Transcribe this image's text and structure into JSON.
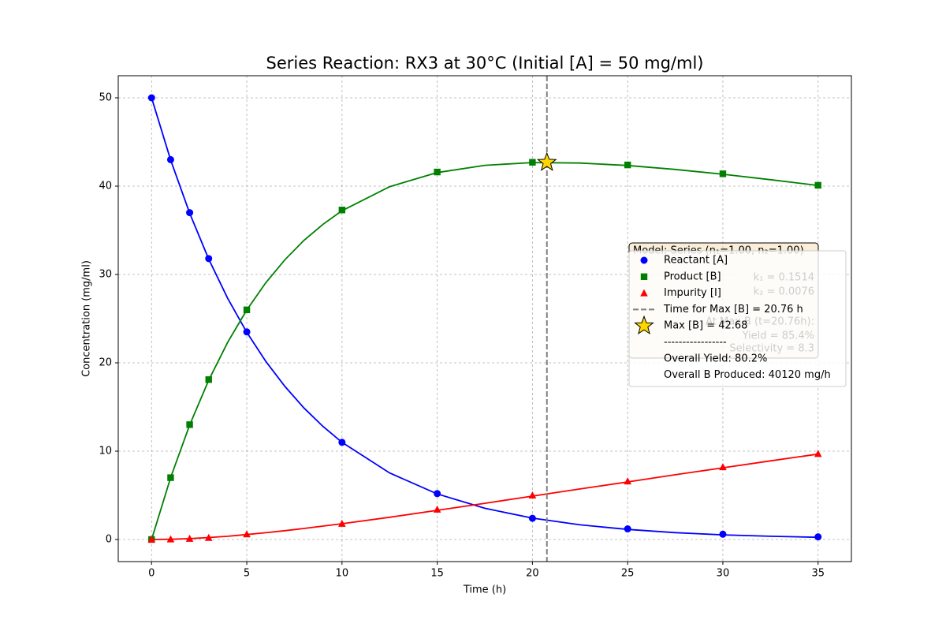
{
  "chart_data": {
    "type": "line",
    "title": "Series Reaction: RX3 at 30°C (Initial [A] = 50 mg/ml)",
    "xlabel": "Time (h)",
    "ylabel": "Concentration (mg/ml)",
    "xlim": [
      -1.75,
      36.75
    ],
    "ylim": [
      -2.5,
      52.5
    ],
    "xticks": [
      0,
      5,
      10,
      15,
      20,
      25,
      30,
      35
    ],
    "yticks": [
      0,
      10,
      20,
      30,
      40,
      50
    ],
    "grid": true,
    "x": [
      0,
      1,
      2,
      3,
      5,
      10,
      15,
      20,
      25,
      30,
      35
    ],
    "curve_x": [
      0,
      1,
      2,
      3,
      4,
      5,
      6,
      7,
      8,
      9,
      10,
      12.5,
      15,
      17.5,
      20,
      22.5,
      25,
      27.5,
      30,
      32.5,
      35
    ],
    "series": [
      {
        "name": "Reactant [A]",
        "color": "#0000ff",
        "marker": "circle",
        "values": [
          50,
          43,
          37,
          31.8,
          23.5,
          11,
          5.2,
          2.4,
          1.2,
          0.6,
          0.3
        ],
        "curve": [
          50,
          42.97,
          36.94,
          31.75,
          27.29,
          23.45,
          20.16,
          17.33,
          14.89,
          12.8,
          11.0,
          7.54,
          5.16,
          3.54,
          2.42,
          1.66,
          1.14,
          0.78,
          0.53,
          0.37,
          0.25
        ]
      },
      {
        "name": "Product [B]",
        "color": "#008000",
        "marker": "square",
        "values": [
          0,
          7,
          13,
          18.1,
          26,
          37.3,
          41.6,
          42.7,
          42.4,
          41.4,
          40.1
        ],
        "curve": [
          0,
          7.0,
          12.96,
          18.03,
          22.34,
          25.99,
          29.07,
          31.67,
          33.86,
          35.68,
          37.21,
          39.94,
          41.54,
          42.36,
          42.67,
          42.62,
          42.34,
          41.89,
          41.35,
          40.73,
          40.08
        ]
      },
      {
        "name": "Impurity [I]",
        "color": "#ff0000",
        "marker": "triangle",
        "values": [
          0,
          0.03,
          0.1,
          0.2,
          0.6,
          1.8,
          3.4,
          5.0,
          6.6,
          8.2,
          9.7
        ],
        "curve": [
          0,
          0.03,
          0.1,
          0.22,
          0.37,
          0.56,
          0.77,
          1.0,
          1.25,
          1.52,
          1.79,
          2.52,
          3.3,
          4.1,
          4.91,
          5.72,
          6.52,
          7.33,
          8.12,
          8.9,
          9.67
        ]
      }
    ],
    "vline": {
      "name": "Time for Max [B] = 20.76 h",
      "x": 20.76,
      "color": "#808080"
    },
    "peak": {
      "name": "Max [B] = 42.68",
      "x": 20.76,
      "y": 42.68,
      "color": "#ffd700"
    },
    "legend_notes": [
      "-----------------",
      "Overall Yield: 80.2%",
      "Overall B Produced: 40120 mg/h"
    ],
    "annotation": [
      "Model: Series (n₁=1.00, n₂=1.00)",
      "k₁ = 0.1514",
      "k₂ = 0.0076",
      "At Max B (t=20.76h):",
      "Yield = 85.4%",
      "Selectivity = 8.3"
    ]
  }
}
